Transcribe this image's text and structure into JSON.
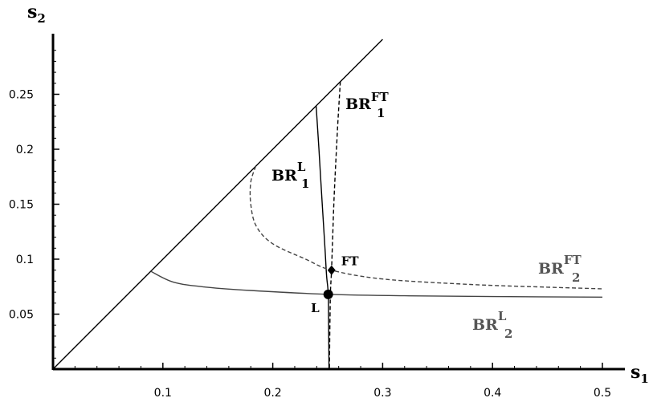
{
  "chart_data": {
    "type": "line",
    "x_axis": {
      "label_base": "s",
      "label_sub": "1",
      "range": [
        0,
        0.5
      ],
      "ticks": [
        {
          "value": 0.1,
          "label": "0.1"
        },
        {
          "value": 0.2,
          "label": "0.2"
        },
        {
          "value": 0.3,
          "label": "0.3"
        },
        {
          "value": 0.4,
          "label": "0.4"
        },
        {
          "value": 0.5,
          "label": "0.5"
        }
      ]
    },
    "y_axis": {
      "label_base": "s",
      "label_sub": "2",
      "range": [
        0,
        0.3
      ],
      "ticks": [
        {
          "value": 0.05,
          "label": "0.05"
        },
        {
          "value": 0.1,
          "label": "0.1"
        },
        {
          "value": 0.15,
          "label": "0.15"
        },
        {
          "value": 0.2,
          "label": "0.2"
        },
        {
          "value": 0.25,
          "label": "0.25"
        }
      ]
    },
    "series": [
      {
        "key": "diagonal",
        "style": "solid",
        "color": "#000000",
        "points": [
          [
            0,
            0
          ],
          [
            0.3,
            0.3
          ]
        ]
      },
      {
        "key": "br1_l",
        "label": {
          "base": "BR",
          "sub": "1",
          "sup": "L"
        },
        "style": "solid",
        "color": "#000000",
        "points": [
          [
            0.2395,
            0.2395
          ],
          [
            0.242,
            0.2
          ],
          [
            0.245,
            0.15
          ],
          [
            0.2475,
            0.11
          ],
          [
            0.249,
            0.085
          ],
          [
            0.2505,
            0.068
          ],
          [
            0.2508,
            0.04
          ],
          [
            0.2512,
            0.0
          ]
        ]
      },
      {
        "key": "br1_ft",
        "label": {
          "base": "BR",
          "sub": "1",
          "sup": "FT"
        },
        "style": "dashed",
        "color": "#000000",
        "points": [
          [
            0.2615,
            0.2615
          ],
          [
            0.259,
            0.22
          ],
          [
            0.256,
            0.16
          ],
          [
            0.2545,
            0.12
          ],
          [
            0.2535,
            0.09
          ],
          [
            0.2525,
            0.07
          ],
          [
            0.252,
            0.04
          ],
          [
            0.2515,
            0.0
          ]
        ]
      },
      {
        "key": "br2_l",
        "label": {
          "base": "BR",
          "sub": "2",
          "sup": "L"
        },
        "style": "solid",
        "color": "#444444",
        "points": [
          [
            0.089,
            0.089
          ],
          [
            0.11,
            0.079
          ],
          [
            0.14,
            0.0745
          ],
          [
            0.18,
            0.0715
          ],
          [
            0.2505,
            0.068
          ],
          [
            0.32,
            0.0667
          ],
          [
            0.4,
            0.066
          ],
          [
            0.5,
            0.0655
          ]
        ]
      },
      {
        "key": "br2_ft",
        "label": {
          "base": "BR",
          "sub": "2",
          "sup": "FT"
        },
        "style": "dashed",
        "color": "#444444",
        "points": [
          [
            0.1845,
            0.1845
          ],
          [
            0.18,
            0.17
          ],
          [
            0.18,
            0.15
          ],
          [
            0.185,
            0.13
          ],
          [
            0.2,
            0.114
          ],
          [
            0.23,
            0.1
          ],
          [
            0.2535,
            0.09
          ],
          [
            0.3,
            0.082
          ],
          [
            0.38,
            0.077
          ],
          [
            0.45,
            0.0745
          ],
          [
            0.5,
            0.073
          ]
        ]
      }
    ],
    "points": [
      {
        "key": "L",
        "label": "L",
        "x": 0.2505,
        "y": 0.068
      },
      {
        "key": "FT",
        "label": "FT",
        "x": 0.2535,
        "y": 0.09
      }
    ]
  }
}
